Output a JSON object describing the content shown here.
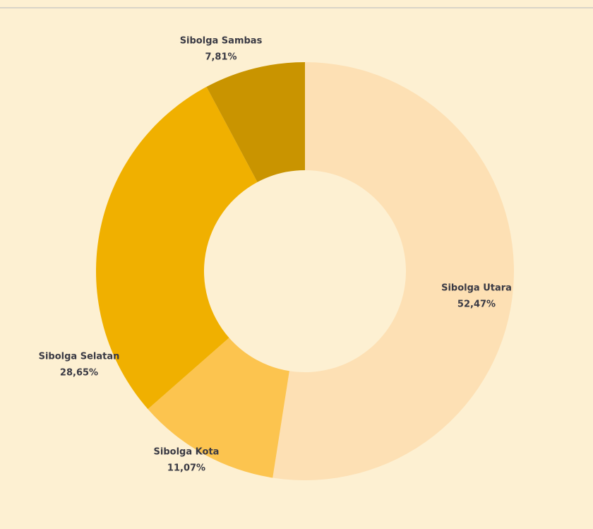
{
  "chart_data": {
    "type": "donut",
    "categories": [
      "Sibolga Utara",
      "Sibolga Kota",
      "Sibolga Selatan",
      "Sibolga Sambas"
    ],
    "values": [
      52.47,
      11.07,
      28.65,
      7.81
    ],
    "value_labels": [
      "52,47%",
      "11,07%",
      "28,65%",
      "7,81%"
    ],
    "colors": [
      "#fde0b4",
      "#fcc44f",
      "#f0b000",
      "#c99400"
    ]
  }
}
